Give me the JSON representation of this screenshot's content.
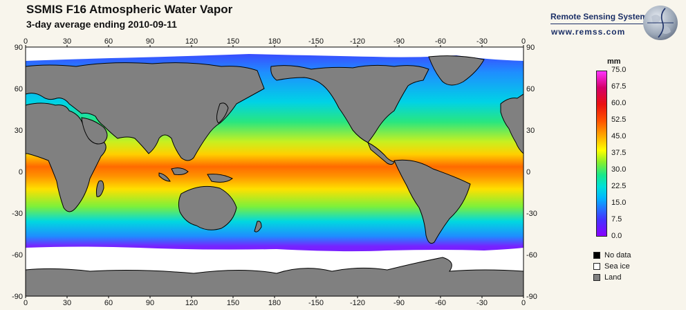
{
  "header": {
    "title": "SSMIS F16 Atmospheric Water Vapor",
    "subtitle": "3-day average ending 2010-09-11"
  },
  "logo": {
    "name": "Remote Sensing Systems",
    "url": "www.remss.com"
  },
  "map": {
    "projection": "equirectangular",
    "lon_ticks": [
      "0",
      "30",
      "60",
      "90",
      "120",
      "150",
      "180",
      "-150",
      "-120",
      "-90",
      "-60",
      "-30",
      "0"
    ],
    "lat_ticks": [
      "90",
      "60",
      "30",
      "0",
      "-30",
      "-60",
      "-90"
    ]
  },
  "colorbar": {
    "unit": "mm",
    "labels": [
      "75.0",
      "67.5",
      "60.0",
      "52.5",
      "45.0",
      "37.5",
      "30.0",
      "22.5",
      "15.0",
      "7.5",
      "0.0"
    ],
    "colors": {
      "low": "#8800ff",
      "mid_low": "#00b6ff",
      "mid": "#ffff00",
      "high": "#ea1010",
      "max": "#ff33ff"
    }
  },
  "legend": [
    {
      "label": "No data",
      "color": "#000000"
    },
    {
      "label": "Sea ice",
      "color": "#ffffff"
    },
    {
      "label": "Land",
      "color": "#808080"
    }
  ]
}
